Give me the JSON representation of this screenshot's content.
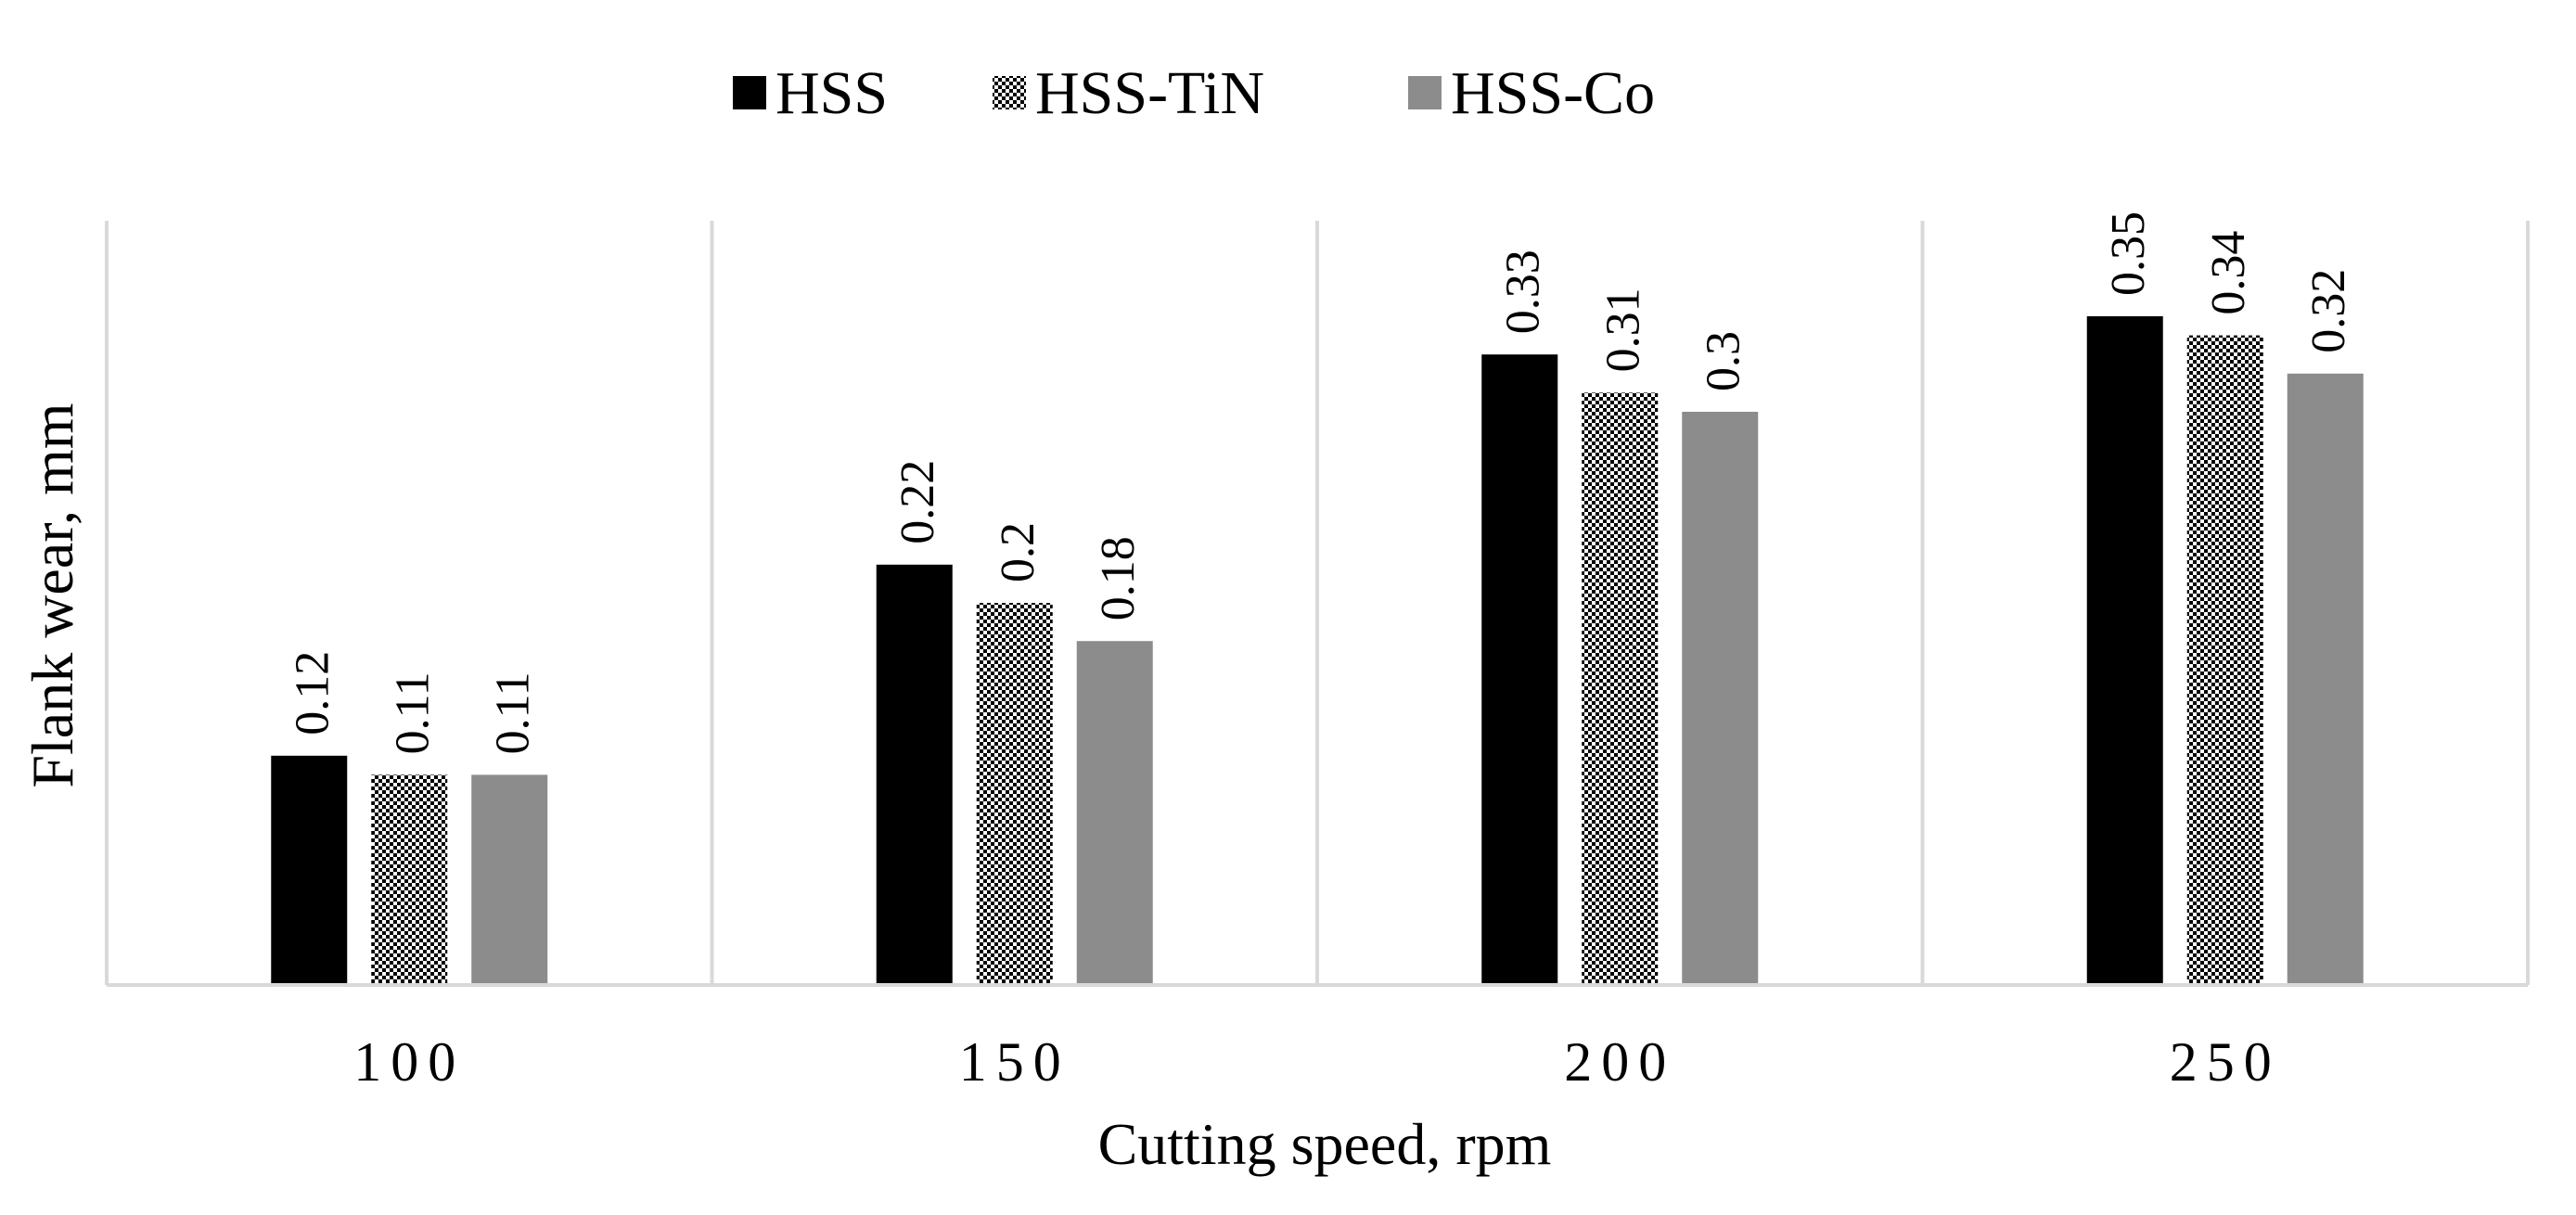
{
  "chart_data": {
    "type": "bar",
    "xlabel": "Cutting speed, rpm",
    "ylabel": "Flank wear, mm",
    "categories": [
      "100",
      "150",
      "200",
      "250"
    ],
    "series": [
      {
        "name": "HSS",
        "values": [
          0.12,
          0.22,
          0.33,
          0.35
        ],
        "labels": [
          "0.12",
          "0.22",
          "0.33",
          "0.35"
        ],
        "color": "#000000",
        "pattern": "solid"
      },
      {
        "name": "HSS-TiN",
        "values": [
          0.11,
          0.2,
          0.31,
          0.34
        ],
        "labels": [
          "0.11",
          "0.2",
          "0.31",
          "0.34"
        ],
        "color": "#000000",
        "pattern": "checker"
      },
      {
        "name": "HSS-Co",
        "values": [
          0.11,
          0.18,
          0.3,
          0.32
        ],
        "labels": [
          "0.11",
          "0.18",
          "0.3",
          "0.32"
        ],
        "color": "#8c8c8c",
        "pattern": "solid"
      }
    ],
    "ylim": [
      0,
      0.4
    ],
    "grid": "vertical category separators",
    "legend_position": "top-center",
    "data_labels": "rotated vertical above bars"
  }
}
